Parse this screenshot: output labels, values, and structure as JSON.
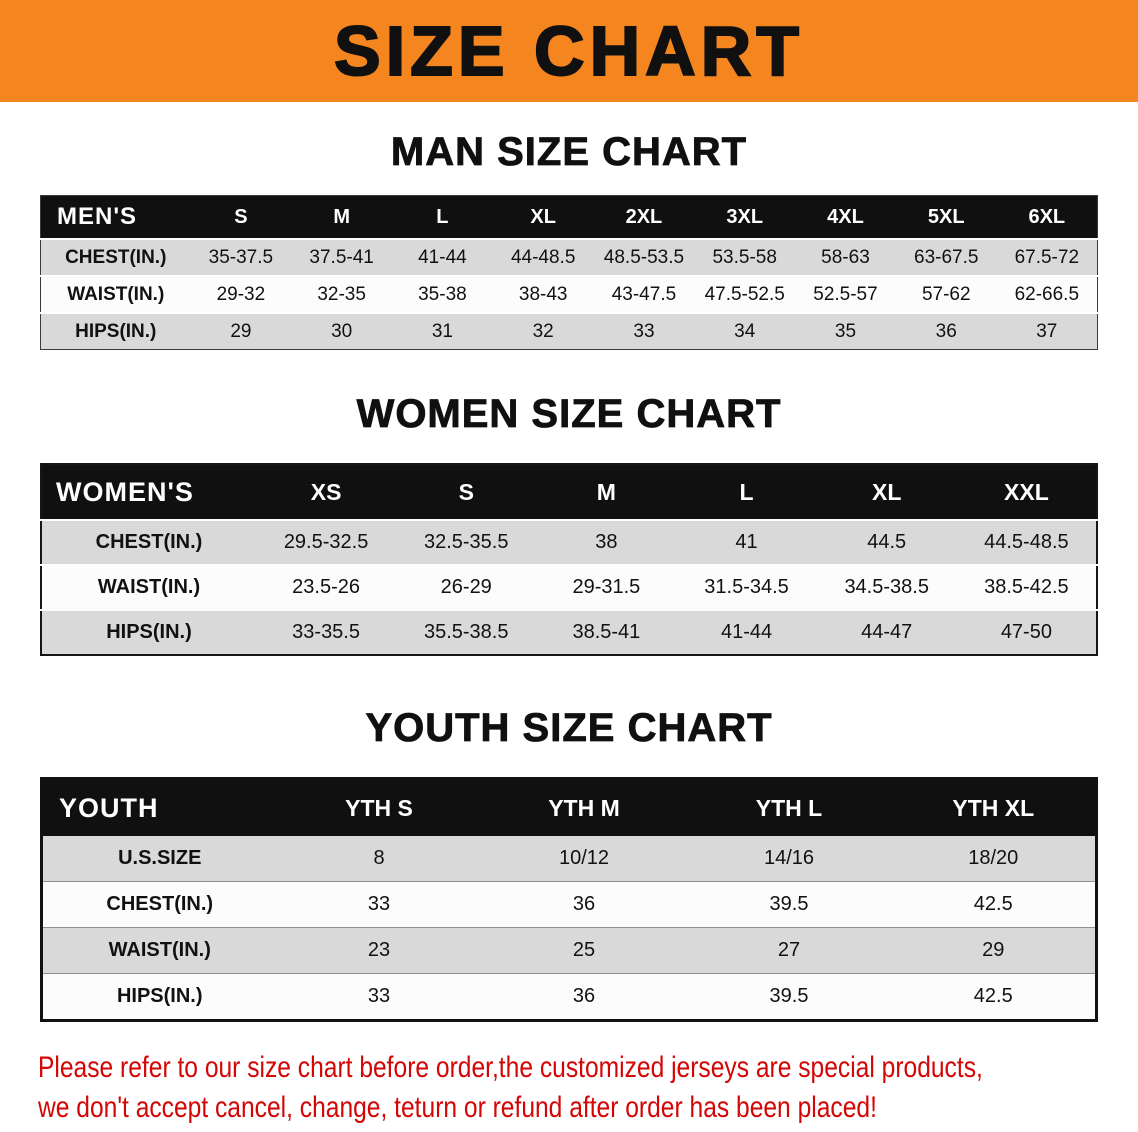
{
  "banner": {
    "title": "SIZE CHART",
    "bg_color": "#f5861f"
  },
  "sections": [
    {
      "id": "men",
      "heading": "MAN SIZE CHART",
      "table": {
        "header": [
          "MEN'S",
          "S",
          "M",
          "L",
          "XL",
          "2XL",
          "3XL",
          "4XL",
          "5XL",
          "6XL"
        ],
        "rows": [
          [
            "CHEST(IN.)",
            "35-37.5",
            "37.5-41",
            "41-44",
            "44-48.5",
            "48.5-53.5",
            "53.5-58",
            "58-63",
            "63-67.5",
            "67.5-72"
          ],
          [
            "WAIST(IN.)",
            "29-32",
            "32-35",
            "35-38",
            "38-43",
            "43-47.5",
            "47.5-52.5",
            "52.5-57",
            "57-62",
            "62-66.5"
          ],
          [
            "HIPS(IN.)",
            "29",
            "30",
            "31",
            "32",
            "33",
            "34",
            "35",
            "36",
            "37"
          ]
        ]
      }
    },
    {
      "id": "women",
      "heading": "WOMEN SIZE CHART",
      "table": {
        "header": [
          "WOMEN'S",
          "XS",
          "S",
          "M",
          "L",
          "XL",
          "XXL"
        ],
        "rows": [
          [
            "CHEST(IN.)",
            "29.5-32.5",
            "32.5-35.5",
            "38",
            "41",
            "44.5",
            "44.5-48.5"
          ],
          [
            "WAIST(IN.)",
            "23.5-26",
            "26-29",
            "29-31.5",
            "31.5-34.5",
            "34.5-38.5",
            "38.5-42.5"
          ],
          [
            "HIPS(IN.)",
            "33-35.5",
            "35.5-38.5",
            "38.5-41",
            "41-44",
            "44-47",
            "47-50"
          ]
        ]
      }
    },
    {
      "id": "youth",
      "heading": "YOUTH SIZE CHART",
      "table": {
        "header": [
          "YOUTH",
          "YTH S",
          "YTH M",
          "YTH L",
          "YTH XL"
        ],
        "rows": [
          [
            "U.S.SIZE",
            "8",
            "10/12",
            "14/16",
            "18/20"
          ],
          [
            "CHEST(IN.)",
            "33",
            "36",
            "39.5",
            "42.5"
          ],
          [
            "WAIST(IN.)",
            "23",
            "25",
            "27",
            "29"
          ],
          [
            "HIPS(IN.)",
            "33",
            "36",
            "39.5",
            "42.5"
          ]
        ]
      }
    }
  ],
  "disclaimer": {
    "color": "#d40505",
    "line1": "Please refer to our size chart before order,the customized jerseys are special products,",
    "line2": "we don't accept cancel, change, teturn or refund after order has been placed!"
  }
}
